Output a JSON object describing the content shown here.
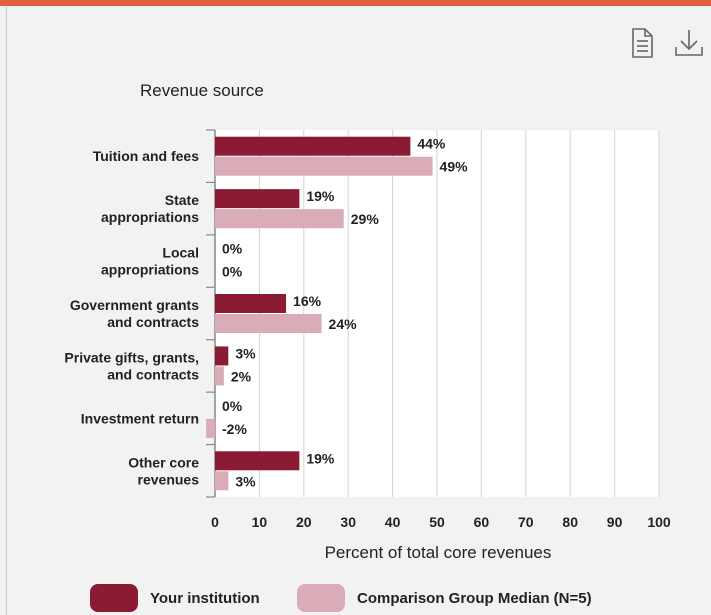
{
  "toolbar": {
    "report_icon": "document-icon",
    "download_icon": "download-icon"
  },
  "chart_data": {
    "type": "bar",
    "orientation": "horizontal",
    "title": "Revenue source",
    "xlabel": "Percent of total core revenues",
    "xlim": [
      0,
      100
    ],
    "xticks": [
      0,
      10,
      20,
      30,
      40,
      50,
      60,
      70,
      80,
      90,
      100
    ],
    "grid": true,
    "legend_position": "bottom",
    "categories": [
      [
        "Tuition and fees"
      ],
      [
        "State",
        "appropriations"
      ],
      [
        "Local",
        "appropriations"
      ],
      [
        "Government grants",
        "and contracts"
      ],
      [
        "Private gifts, grants,",
        "and contracts"
      ],
      [
        "Investment return"
      ],
      [
        "Other core",
        "revenues"
      ]
    ],
    "series": [
      {
        "name": "Your institution",
        "color": "#8a1b32",
        "values": [
          44,
          19,
          0,
          16,
          3,
          0,
          19
        ],
        "labels": [
          "44%",
          "19%",
          "0%",
          "16%",
          "3%",
          "0%",
          "19%"
        ]
      },
      {
        "name": "Comparison Group Median (N=5)",
        "color": "#d9acb7",
        "values": [
          49,
          29,
          0,
          24,
          2,
          -2,
          3
        ],
        "labels": [
          "49%",
          "29%",
          "0%",
          "24%",
          "2%",
          "-2%",
          "3%"
        ]
      }
    ]
  }
}
